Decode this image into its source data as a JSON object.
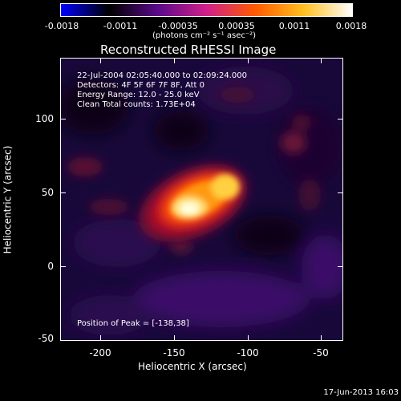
{
  "colorbar": {
    "ticks": [
      "-0.0018",
      "-0.0011",
      "-0.00035",
      "0.00035",
      "0.0011",
      "0.0018"
    ],
    "unit_label": "(photons cm⁻² s⁻¹ asec⁻²)",
    "colors": [
      "#0000ff",
      "#000000",
      "#5a0a8a",
      "#d0208a",
      "#ff5a00",
      "#ffc020",
      "#ffffff"
    ]
  },
  "title": "Reconstructed RHESSI Image",
  "info": {
    "time_range": "22-Jul-2004 02:05:40.000 to 02:09:24.000",
    "detectors": "Detectors: 4F 5F 6F 7F 8F, Att 0",
    "energy": "Energy Range: 12.0 - 25.0 keV",
    "clean": "Clean    Total counts: 1.73E+04",
    "peak": "Position of Peak = [-138,38]"
  },
  "axes": {
    "xlabel": "Heliocentric X (arcsec)",
    "ylabel": "Heliocentric Y (arcsec)",
    "xticks": [
      "-200",
      "-150",
      "-100",
      "-50"
    ],
    "yticks": [
      "100",
      "50",
      "0",
      "-50"
    ]
  },
  "timestamp": "17-Jun-2013 16:03"
}
